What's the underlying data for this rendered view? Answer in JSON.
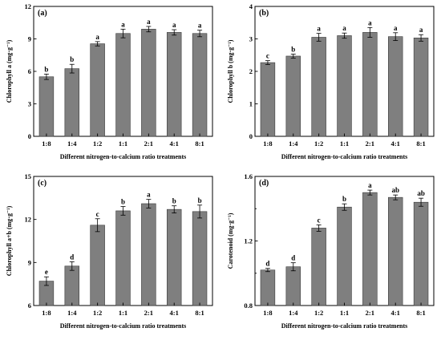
{
  "chart_data": [
    {
      "type": "bar",
      "panel": "(a)",
      "ylabel": "Chlorophyll a  (mg·g⁻¹)",
      "xlabel": "Different nitrogen-to-calcium ratio treatments",
      "categories": [
        "1:8",
        "1:4",
        "1:2",
        "1:1",
        "2:1",
        "4:1",
        "8:1"
      ],
      "values": [
        5.5,
        6.25,
        8.55,
        9.5,
        9.9,
        9.6,
        9.5
      ],
      "errors": [
        0.25,
        0.4,
        0.2,
        0.4,
        0.25,
        0.25,
        0.3
      ],
      "letters": [
        "b",
        "b",
        "a",
        "a",
        "a",
        "a",
        "a"
      ],
      "ylim": [
        0,
        12
      ],
      "yticks": [
        "0",
        "3",
        "6",
        "9",
        "12"
      ],
      "legend": "none",
      "grid": false
    },
    {
      "type": "bar",
      "panel": "(b)",
      "ylabel": "Chlorophyll b  (mg·g⁻¹)",
      "xlabel": "Different nitrogen-to-calcium ratio treatments",
      "categories": [
        "1:8",
        "1:4",
        "1:2",
        "1:1",
        "2:1",
        "4:1",
        "8:1"
      ],
      "values": [
        2.27,
        2.47,
        3.05,
        3.1,
        3.2,
        3.07,
        3.03
      ],
      "errors": [
        0.06,
        0.06,
        0.12,
        0.08,
        0.15,
        0.12,
        0.1
      ],
      "letters": [
        "c",
        "b",
        "a",
        "a",
        "a",
        "a",
        "a"
      ],
      "ylim": [
        0,
        4
      ],
      "yticks": [
        "0",
        "1",
        "2",
        "3",
        "4"
      ],
      "legend": "none",
      "grid": false
    },
    {
      "type": "bar",
      "panel": "(c)",
      "ylabel": "Chlorophyll a+b  (mg·g⁻¹)",
      "xlabel": "Different nitrogen-to-calcium ratio treatments",
      "categories": [
        "1:8",
        "1:4",
        "1:2",
        "1:1",
        "2:1",
        "4:1",
        "8:1"
      ],
      "values": [
        7.7,
        8.75,
        11.6,
        12.6,
        13.1,
        12.7,
        12.55
      ],
      "errors": [
        0.3,
        0.3,
        0.45,
        0.3,
        0.3,
        0.25,
        0.45
      ],
      "letters": [
        "e",
        "d",
        "c",
        "b",
        "a",
        "b",
        "b"
      ],
      "ylim": [
        6,
        15
      ],
      "yticks": [
        "6",
        "9",
        "12",
        "15"
      ],
      "legend": "none",
      "grid": false
    },
    {
      "type": "bar",
      "panel": "(d)",
      "ylabel": "Carotenoid  (mg·g⁻¹)",
      "xlabel": "Different nitrogen-to-calcium ratio treatments",
      "categories": [
        "1:8",
        "1:4",
        "1:2",
        "1:1",
        "2:1",
        "4:1",
        "8:1"
      ],
      "values": [
        1.02,
        1.04,
        1.28,
        1.41,
        1.5,
        1.47,
        1.44
      ],
      "errors": [
        0.01,
        0.025,
        0.02,
        0.02,
        0.015,
        0.015,
        0.025
      ],
      "letters": [
        "d",
        "d",
        "c",
        "b",
        "a",
        "ab",
        "ab"
      ],
      "ylim": [
        0.8,
        1.6
      ],
      "yticks": [
        "0.8",
        "1.2",
        "1.6"
      ],
      "minor_yticks": [
        "1.0",
        "1.4"
      ],
      "legend": "none",
      "grid": false
    }
  ]
}
